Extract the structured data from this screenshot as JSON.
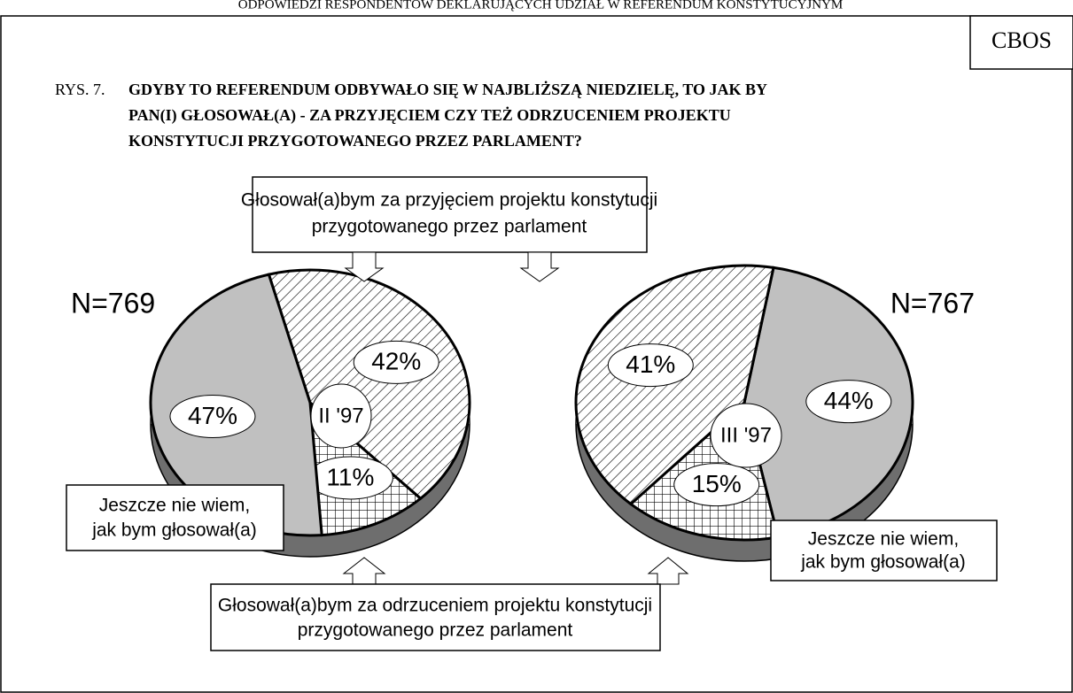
{
  "header": "ODPOWIEDZI RESPONDENTÓW DEKLARUJĄCYCH UDZIAŁ W REFERENDUM KONSTYTUCYJNYM",
  "source": "CBOS",
  "figure_label": "RYS. 7.",
  "title_lines": [
    "GDYBY TO REFERENDUM ODBYWAŁO SIĘ W NAJBLIŻSZĄ NIEDZIELĘ, TO JAK BY",
    "PAN(I) GŁOSOWAŁ(A) - ZA PRZYJĘCIEM CZY TEŻ ODRZUCENIEM PROJEKTU",
    "KONSTYTUCJI PRZYGOTOWANEGO PRZEZ PARLAMENT?"
  ],
  "callouts": {
    "accept": [
      "Głosował(a)bym za przyjęciem projektu konstytucji",
      "przygotowanego przez parlament"
    ],
    "reject": [
      "Głosował(a)bym za odrzuceniem projektu konstytucji",
      "przygotowanego przez parlament"
    ],
    "undecided": [
      "Jeszcze nie wiem,",
      "jak bym głosował(a)"
    ]
  },
  "chart_data": [
    {
      "type": "pie",
      "label": "II '97",
      "n_label": "N=769",
      "values": [
        42,
        11,
        47
      ],
      "value_labels": [
        "42%",
        "11%",
        "47%"
      ],
      "patterns": [
        "hatch",
        "crosshatch",
        "gray"
      ]
    },
    {
      "type": "pie",
      "label": "III '97",
      "n_label": "N=767",
      "values": [
        44,
        15,
        41
      ],
      "value_labels": [
        "44%",
        "15%",
        "41%"
      ],
      "patterns": [
        "gray",
        "crosshatch",
        "hatch"
      ]
    }
  ]
}
